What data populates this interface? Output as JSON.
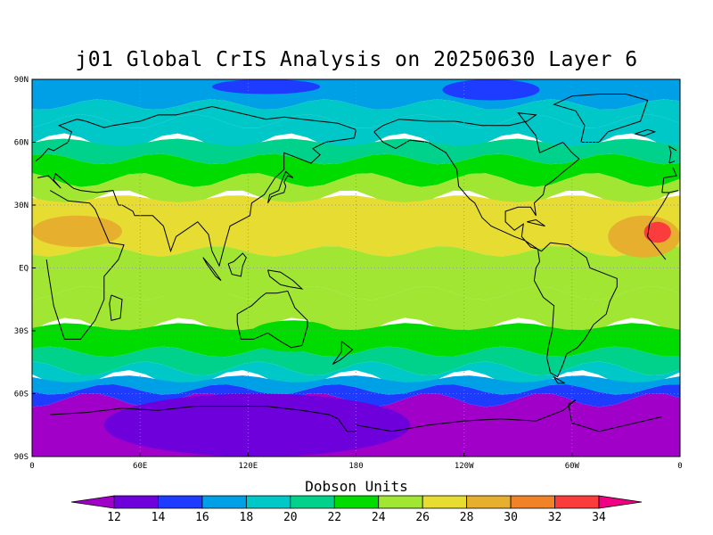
{
  "title": "j01 Global CrIS Analysis on 20250630 Layer 6",
  "map": {
    "lat_labels": [
      "90N",
      "60N",
      "30N",
      "EQ",
      "30S",
      "60S",
      "90S"
    ],
    "lat_values": [
      90,
      60,
      30,
      0,
      -30,
      -60,
      -90
    ],
    "lon_labels": [
      "0",
      "60E",
      "120E",
      "180",
      "120W",
      "60W",
      "0"
    ],
    "lon_values": [
      0,
      60,
      120,
      180,
      240,
      300,
      360
    ],
    "lon_range": [
      0,
      360
    ],
    "lat_range": [
      -90,
      90
    ],
    "grid": "dotted"
  },
  "colorbar": {
    "title": "Dobson Units",
    "levels": [
      12,
      14,
      16,
      18,
      20,
      22,
      24,
      26,
      28,
      30,
      32,
      34
    ],
    "level_labels": [
      "12",
      "14",
      "16",
      "18",
      "20",
      "22",
      "24",
      "26",
      "28",
      "30",
      "32",
      "34"
    ],
    "colors": [
      "#a000c8",
      "#6e00dc",
      "#1e3cff",
      "#00a0e6",
      "#00c8c8",
      "#00d28c",
      "#00dc00",
      "#a0e632",
      "#e6dc32",
      "#e6af2d",
      "#f08228",
      "#fa3c3c",
      "#f00082"
    ]
  },
  "field": {
    "lat_bands": [
      {
        "from": 90,
        "to": 78,
        "color_index": 3
      },
      {
        "from": 78,
        "to": 70,
        "color_index": 4
      },
      {
        "from": 70,
        "to": 60,
        "color_index": 4
      },
      {
        "from": 60,
        "to": 52,
        "color_index": 5
      },
      {
        "from": 52,
        "to": 42,
        "color_index": 6
      },
      {
        "from": 42,
        "to": 33,
        "color_index": 7
      },
      {
        "from": 33,
        "to": 8,
        "color_index": 8
      },
      {
        "from": 8,
        "to": -12,
        "color_index": 7
      },
      {
        "from": -12,
        "to": -28,
        "color_index": 7
      },
      {
        "from": -28,
        "to": -40,
        "color_index": 6
      },
      {
        "from": -40,
        "to": -48,
        "color_index": 5
      },
      {
        "from": -48,
        "to": -53,
        "color_index": 4
      },
      {
        "from": -53,
        "to": -58,
        "color_index": 3
      },
      {
        "from": -58,
        "to": -63,
        "color_index": 2
      },
      {
        "from": -63,
        "to": -90,
        "color_index": 0
      }
    ],
    "patches": [
      {
        "lon": [
          228,
          282
        ],
        "lat": [
          90,
          80
        ],
        "color_index": 2
      },
      {
        "lon": [
          100,
          160
        ],
        "lat": [
          90,
          83
        ],
        "color_index": 2
      },
      {
        "lon": [
          0,
          360
        ],
        "lat": [
          -66,
          -90
        ],
        "color_index": 0
      },
      {
        "lon": [
          40,
          210
        ],
        "lat": [
          -60,
          -90
        ],
        "color_index": 1
      },
      {
        "lon": [
          320,
          360
        ],
        "lat": [
          25,
          5
        ],
        "color_index": 9
      },
      {
        "lon": [
          340,
          355
        ],
        "lat": [
          22,
          12
        ],
        "color_index": 11
      },
      {
        "lon": [
          0,
          50
        ],
        "lat": [
          25,
          10
        ],
        "color_index": 9
      },
      {
        "lon": [
          60,
          120
        ],
        "lat": [
          5,
          -15
        ],
        "color_index": 7
      },
      {
        "lon": [
          120,
          170
        ],
        "lat": [
          -25,
          -40
        ],
        "color_index": 6
      }
    ]
  }
}
